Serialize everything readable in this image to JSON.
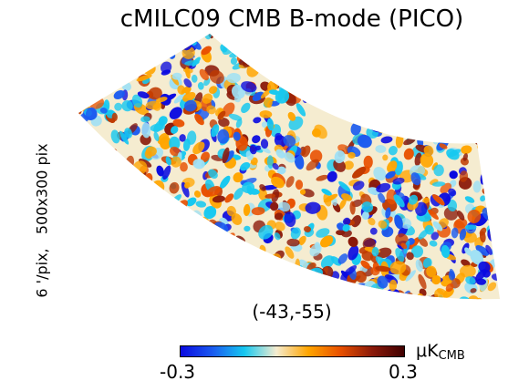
{
  "chart_data": {
    "type": "heatmap",
    "title": "cMILC09 CMB B-mode (PICO)",
    "side_label": "6 '/pix,   500x300 pix",
    "center_label": "(-43,-55)",
    "colorbar": {
      "min_label": "-0.3",
      "max_label": "0.3",
      "vmin": -0.3,
      "vmax": 0.3,
      "unit_mu": "μK",
      "unit_sub": "CMB",
      "colormap": [
        "#0a0ae0",
        "#1a5af0",
        "#16c8f0",
        "#f5ecd0",
        "#ffa500",
        "#e85000",
        "#8b1a0a",
        "#400000"
      ]
    }
  }
}
